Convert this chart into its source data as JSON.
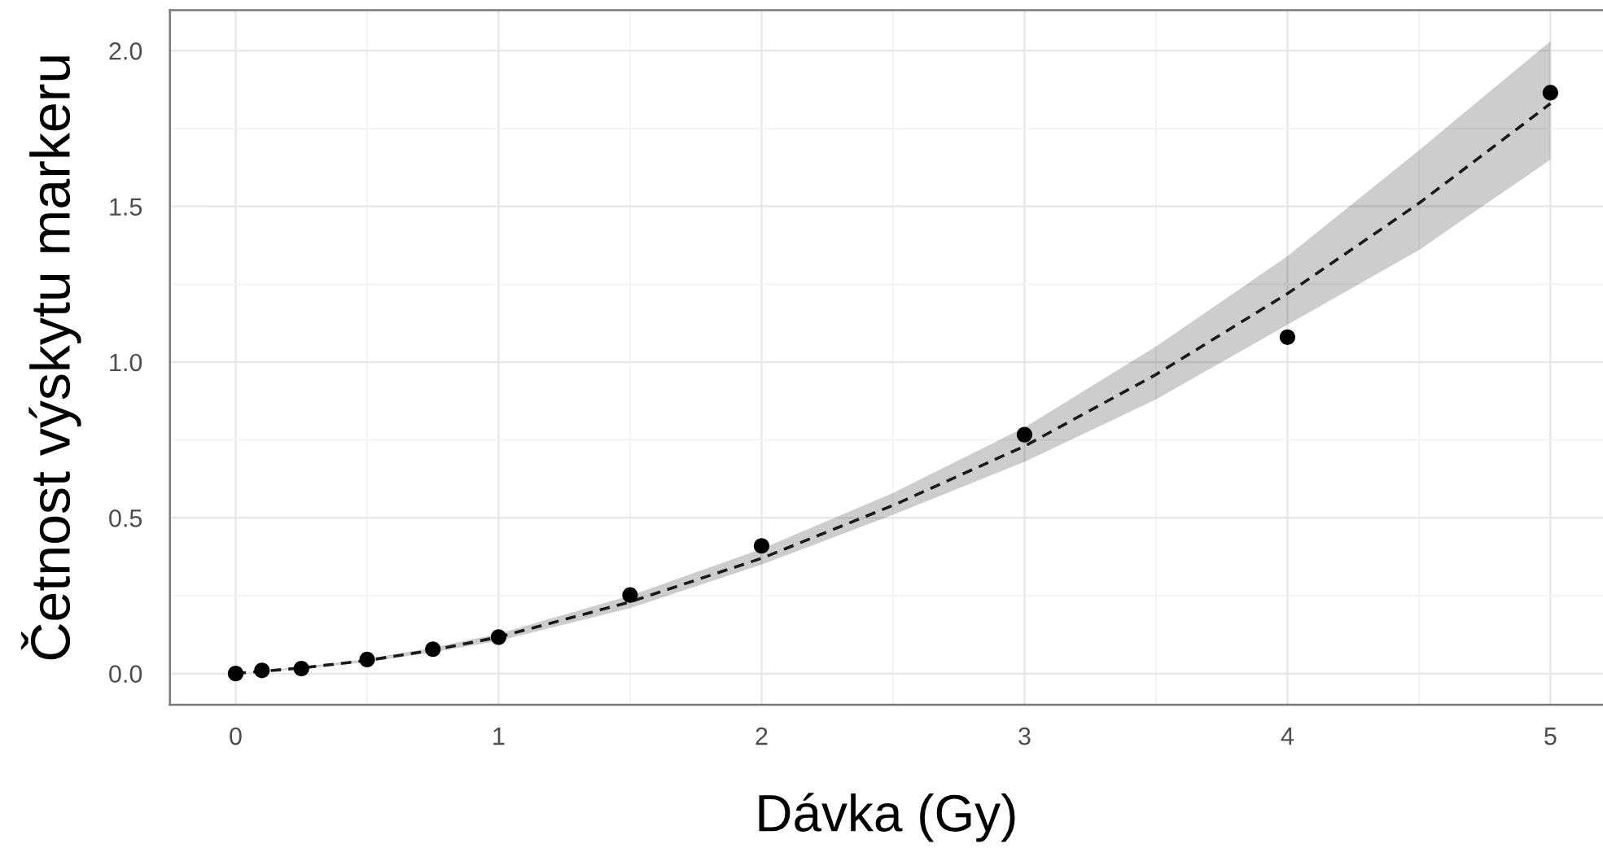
{
  "chart_data": {
    "type": "scatter",
    "xlabel": "Dávka (Gy)",
    "ylabel": "Četnost výskytu markeru",
    "series": [
      {
        "type": "line",
        "color": "#1a1a1a",
        "line_style": "dashed",
        "marker": "none",
        "x": [
          0,
          0.25,
          0.5,
          0.75,
          1,
          1.5,
          2,
          2.5,
          3,
          3.5,
          4,
          4.5,
          5
        ],
        "values": [
          0.0,
          0.018,
          0.042,
          0.075,
          0.117,
          0.23,
          0.37,
          0.54,
          0.73,
          0.96,
          1.22,
          1.51,
          1.83
        ],
        "lower": [
          0.0,
          0.015,
          0.037,
          0.068,
          0.105,
          0.21,
          0.35,
          0.51,
          0.68,
          0.88,
          1.12,
          1.36,
          1.65
        ],
        "upper": [
          0.0,
          0.021,
          0.047,
          0.083,
          0.128,
          0.25,
          0.4,
          0.58,
          0.79,
          1.05,
          1.34,
          1.68,
          2.03
        ]
      },
      {
        "color": "#000000",
        "marker": "circle",
        "x": [
          0,
          0.1,
          0.25,
          0.5,
          0.75,
          1,
          1.5,
          2,
          3,
          4,
          5
        ],
        "values": [
          0.0,
          0.01,
          0.016,
          0.045,
          0.078,
          0.117,
          0.252,
          0.41,
          0.767,
          1.08,
          1.865
        ]
      }
    ],
    "xlim": [
      -0.25,
      5.2
    ],
    "ylim": [
      -0.1,
      2.13
    ],
    "xticks": [
      0,
      1,
      2,
      3,
      4,
      5
    ],
    "yticks": [
      {
        "value": 0,
        "label": "0.0"
      },
      {
        "value": 0.5,
        "label": "0.5"
      },
      {
        "value": 1,
        "label": "1.0"
      },
      {
        "value": 1.5,
        "label": "1.5"
      },
      {
        "value": 2,
        "label": "2.0"
      }
    ],
    "grid": true,
    "legend": false
  }
}
